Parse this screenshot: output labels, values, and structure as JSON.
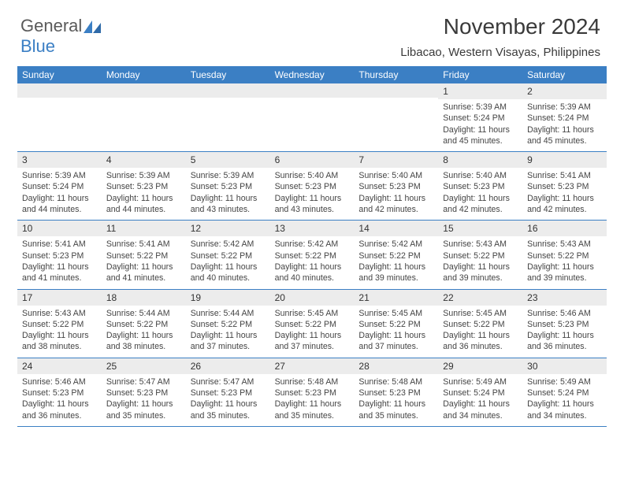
{
  "logo": {
    "text_gray": "General",
    "text_blue": "Blue"
  },
  "title": "November 2024",
  "location": "Libacao, Western Visayas, Philippines",
  "colors": {
    "header_bg": "#3b7fc4",
    "header_text": "#ffffff",
    "daynum_bg": "#ececec",
    "body_text": "#444444",
    "page_bg": "#ffffff",
    "rule": "#3b7fc4"
  },
  "day_names": [
    "Sunday",
    "Monday",
    "Tuesday",
    "Wednesday",
    "Thursday",
    "Friday",
    "Saturday"
  ],
  "weeks": [
    [
      {
        "day": "",
        "sunrise": "",
        "sunset": "",
        "daylight": ""
      },
      {
        "day": "",
        "sunrise": "",
        "sunset": "",
        "daylight": ""
      },
      {
        "day": "",
        "sunrise": "",
        "sunset": "",
        "daylight": ""
      },
      {
        "day": "",
        "sunrise": "",
        "sunset": "",
        "daylight": ""
      },
      {
        "day": "",
        "sunrise": "",
        "sunset": "",
        "daylight": ""
      },
      {
        "day": "1",
        "sunrise": "Sunrise: 5:39 AM",
        "sunset": "Sunset: 5:24 PM",
        "daylight": "Daylight: 11 hours and 45 minutes."
      },
      {
        "day": "2",
        "sunrise": "Sunrise: 5:39 AM",
        "sunset": "Sunset: 5:24 PM",
        "daylight": "Daylight: 11 hours and 45 minutes."
      }
    ],
    [
      {
        "day": "3",
        "sunrise": "Sunrise: 5:39 AM",
        "sunset": "Sunset: 5:24 PM",
        "daylight": "Daylight: 11 hours and 44 minutes."
      },
      {
        "day": "4",
        "sunrise": "Sunrise: 5:39 AM",
        "sunset": "Sunset: 5:23 PM",
        "daylight": "Daylight: 11 hours and 44 minutes."
      },
      {
        "day": "5",
        "sunrise": "Sunrise: 5:39 AM",
        "sunset": "Sunset: 5:23 PM",
        "daylight": "Daylight: 11 hours and 43 minutes."
      },
      {
        "day": "6",
        "sunrise": "Sunrise: 5:40 AM",
        "sunset": "Sunset: 5:23 PM",
        "daylight": "Daylight: 11 hours and 43 minutes."
      },
      {
        "day": "7",
        "sunrise": "Sunrise: 5:40 AM",
        "sunset": "Sunset: 5:23 PM",
        "daylight": "Daylight: 11 hours and 42 minutes."
      },
      {
        "day": "8",
        "sunrise": "Sunrise: 5:40 AM",
        "sunset": "Sunset: 5:23 PM",
        "daylight": "Daylight: 11 hours and 42 minutes."
      },
      {
        "day": "9",
        "sunrise": "Sunrise: 5:41 AM",
        "sunset": "Sunset: 5:23 PM",
        "daylight": "Daylight: 11 hours and 42 minutes."
      }
    ],
    [
      {
        "day": "10",
        "sunrise": "Sunrise: 5:41 AM",
        "sunset": "Sunset: 5:23 PM",
        "daylight": "Daylight: 11 hours and 41 minutes."
      },
      {
        "day": "11",
        "sunrise": "Sunrise: 5:41 AM",
        "sunset": "Sunset: 5:22 PM",
        "daylight": "Daylight: 11 hours and 41 minutes."
      },
      {
        "day": "12",
        "sunrise": "Sunrise: 5:42 AM",
        "sunset": "Sunset: 5:22 PM",
        "daylight": "Daylight: 11 hours and 40 minutes."
      },
      {
        "day": "13",
        "sunrise": "Sunrise: 5:42 AM",
        "sunset": "Sunset: 5:22 PM",
        "daylight": "Daylight: 11 hours and 40 minutes."
      },
      {
        "day": "14",
        "sunrise": "Sunrise: 5:42 AM",
        "sunset": "Sunset: 5:22 PM",
        "daylight": "Daylight: 11 hours and 39 minutes."
      },
      {
        "day": "15",
        "sunrise": "Sunrise: 5:43 AM",
        "sunset": "Sunset: 5:22 PM",
        "daylight": "Daylight: 11 hours and 39 minutes."
      },
      {
        "day": "16",
        "sunrise": "Sunrise: 5:43 AM",
        "sunset": "Sunset: 5:22 PM",
        "daylight": "Daylight: 11 hours and 39 minutes."
      }
    ],
    [
      {
        "day": "17",
        "sunrise": "Sunrise: 5:43 AM",
        "sunset": "Sunset: 5:22 PM",
        "daylight": "Daylight: 11 hours and 38 minutes."
      },
      {
        "day": "18",
        "sunrise": "Sunrise: 5:44 AM",
        "sunset": "Sunset: 5:22 PM",
        "daylight": "Daylight: 11 hours and 38 minutes."
      },
      {
        "day": "19",
        "sunrise": "Sunrise: 5:44 AM",
        "sunset": "Sunset: 5:22 PM",
        "daylight": "Daylight: 11 hours and 37 minutes."
      },
      {
        "day": "20",
        "sunrise": "Sunrise: 5:45 AM",
        "sunset": "Sunset: 5:22 PM",
        "daylight": "Daylight: 11 hours and 37 minutes."
      },
      {
        "day": "21",
        "sunrise": "Sunrise: 5:45 AM",
        "sunset": "Sunset: 5:22 PM",
        "daylight": "Daylight: 11 hours and 37 minutes."
      },
      {
        "day": "22",
        "sunrise": "Sunrise: 5:45 AM",
        "sunset": "Sunset: 5:22 PM",
        "daylight": "Daylight: 11 hours and 36 minutes."
      },
      {
        "day": "23",
        "sunrise": "Sunrise: 5:46 AM",
        "sunset": "Sunset: 5:23 PM",
        "daylight": "Daylight: 11 hours and 36 minutes."
      }
    ],
    [
      {
        "day": "24",
        "sunrise": "Sunrise: 5:46 AM",
        "sunset": "Sunset: 5:23 PM",
        "daylight": "Daylight: 11 hours and 36 minutes."
      },
      {
        "day": "25",
        "sunrise": "Sunrise: 5:47 AM",
        "sunset": "Sunset: 5:23 PM",
        "daylight": "Daylight: 11 hours and 35 minutes."
      },
      {
        "day": "26",
        "sunrise": "Sunrise: 5:47 AM",
        "sunset": "Sunset: 5:23 PM",
        "daylight": "Daylight: 11 hours and 35 minutes."
      },
      {
        "day": "27",
        "sunrise": "Sunrise: 5:48 AM",
        "sunset": "Sunset: 5:23 PM",
        "daylight": "Daylight: 11 hours and 35 minutes."
      },
      {
        "day": "28",
        "sunrise": "Sunrise: 5:48 AM",
        "sunset": "Sunset: 5:23 PM",
        "daylight": "Daylight: 11 hours and 35 minutes."
      },
      {
        "day": "29",
        "sunrise": "Sunrise: 5:49 AM",
        "sunset": "Sunset: 5:24 PM",
        "daylight": "Daylight: 11 hours and 34 minutes."
      },
      {
        "day": "30",
        "sunrise": "Sunrise: 5:49 AM",
        "sunset": "Sunset: 5:24 PM",
        "daylight": "Daylight: 11 hours and 34 minutes."
      }
    ]
  ]
}
